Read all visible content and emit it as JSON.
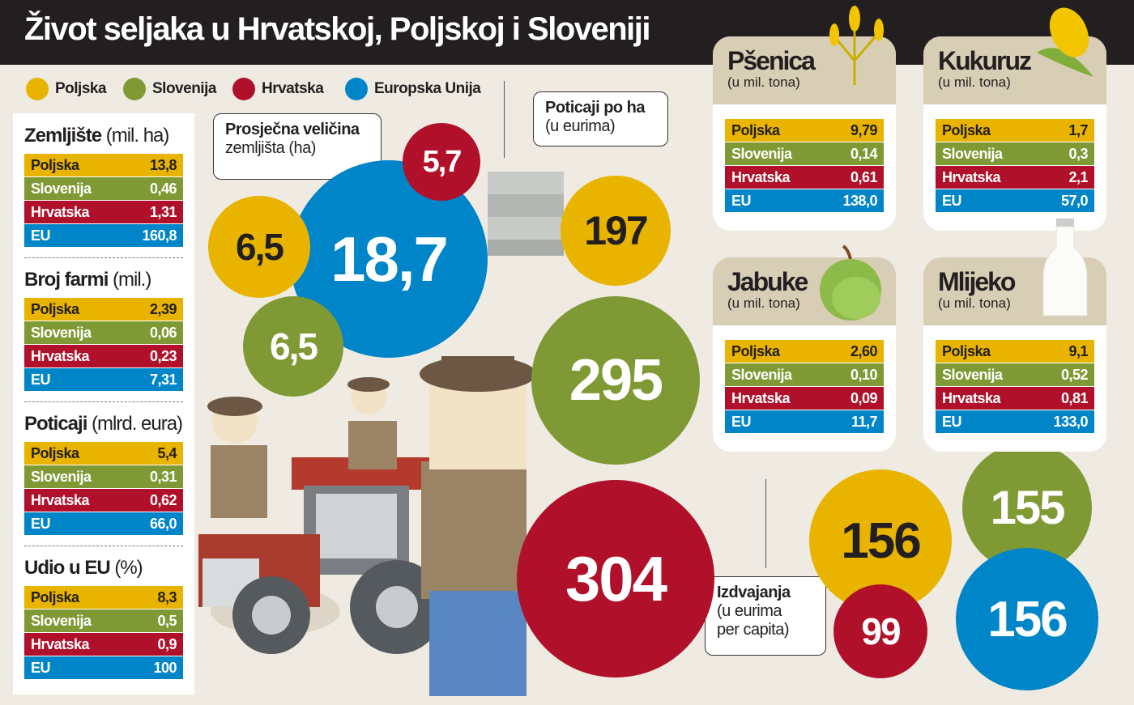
{
  "title": "Život seljaka u Hrvatskoj, Poljskoj i Sloveniji",
  "legend": [
    {
      "label": "Poljska",
      "color": "#e8b400"
    },
    {
      "label": "Slovenija",
      "color": "#7f9a34"
    },
    {
      "label": "Hrvatska",
      "color": "#b0102a"
    },
    {
      "label": "Europska Unija",
      "color": "#0085c8"
    }
  ],
  "left_tables": [
    {
      "title": "Zemljište",
      "unit": "(mil. ha)",
      "rows": [
        [
          "Poljska",
          "13,8"
        ],
        [
          "Slovenija",
          "0,46"
        ],
        [
          "Hrvatska",
          "1,31"
        ],
        [
          "EU",
          "160,8"
        ]
      ]
    },
    {
      "title": "Broj farmi",
      "unit": "(mil.)",
      "rows": [
        [
          "Poljska",
          "2,39"
        ],
        [
          "Slovenija",
          "0,06"
        ],
        [
          "Hrvatska",
          "0,23"
        ],
        [
          "EU",
          "7,31"
        ]
      ]
    },
    {
      "title": "Poticaji",
      "unit": "(mlrd. eura)",
      "rows": [
        [
          "Poljska",
          "5,4"
        ],
        [
          "Slovenija",
          "0,31"
        ],
        [
          "Hrvatska",
          "0,62"
        ],
        [
          "EU",
          "66,0"
        ]
      ]
    },
    {
      "title": "Udio u EU",
      "unit": "(%)",
      "rows": [
        [
          "Poljska",
          "8,3"
        ],
        [
          "Slovenija",
          "0,5"
        ],
        [
          "Hrvatska",
          "0,9"
        ],
        [
          "EU",
          "100"
        ]
      ]
    }
  ],
  "farm_size": {
    "label_line1": "Prosječna veličina",
    "label_line2": "zemljišta (ha)",
    "values": {
      "Poljska": "6,5",
      "Slovenija": "6,5",
      "Hrvatska": "5,7",
      "EU": "18,7"
    }
  },
  "subsidy_per_ha": {
    "label_line1": "Poticaji po ha",
    "label_line2": "(u eurima)",
    "values": {
      "Poljska": "197",
      "Slovenija": "295",
      "Hrvatska": "304"
    }
  },
  "spending_per_capita": {
    "label_line1": "Izdvajanja",
    "label_line2": "(u eurima",
    "label_line3": "per capita)",
    "values": {
      "Poljska": "156",
      "Hrvatska": "99",
      "Slovenija": "155",
      "EU": "156"
    }
  },
  "products": [
    {
      "title": "Pšenica",
      "unit": "(u mil. tona)",
      "icon": "wheat-icon",
      "rows": [
        [
          "Poljska",
          "9,79"
        ],
        [
          "Slovenija",
          "0,14"
        ],
        [
          "Hrvatska",
          "0,61"
        ],
        [
          "EU",
          "138,0"
        ]
      ]
    },
    {
      "title": "Kukuruz",
      "unit": "(u mil. tona)",
      "icon": "corn-icon",
      "rows": [
        [
          "Poljska",
          "1,7"
        ],
        [
          "Slovenija",
          "0,3"
        ],
        [
          "Hrvatska",
          "2,1"
        ],
        [
          "EU",
          "57,0"
        ]
      ]
    },
    {
      "title": "Jabuke",
      "unit": "(u mil. tona)",
      "icon": "apple-icon",
      "rows": [
        [
          "Poljska",
          "2,60"
        ],
        [
          "Slovenija",
          "0,10"
        ],
        [
          "Hrvatska",
          "0,09"
        ],
        [
          "EU",
          "11,7"
        ]
      ]
    },
    {
      "title": "Mlijeko",
      "unit": "(u mil. tona)",
      "icon": "milk-bottle-icon",
      "rows": [
        [
          "Poljska",
          "9,1"
        ],
        [
          "Slovenija",
          "0,52"
        ],
        [
          "Hrvatska",
          "0,81"
        ],
        [
          "EU",
          "133,0"
        ]
      ]
    }
  ]
}
